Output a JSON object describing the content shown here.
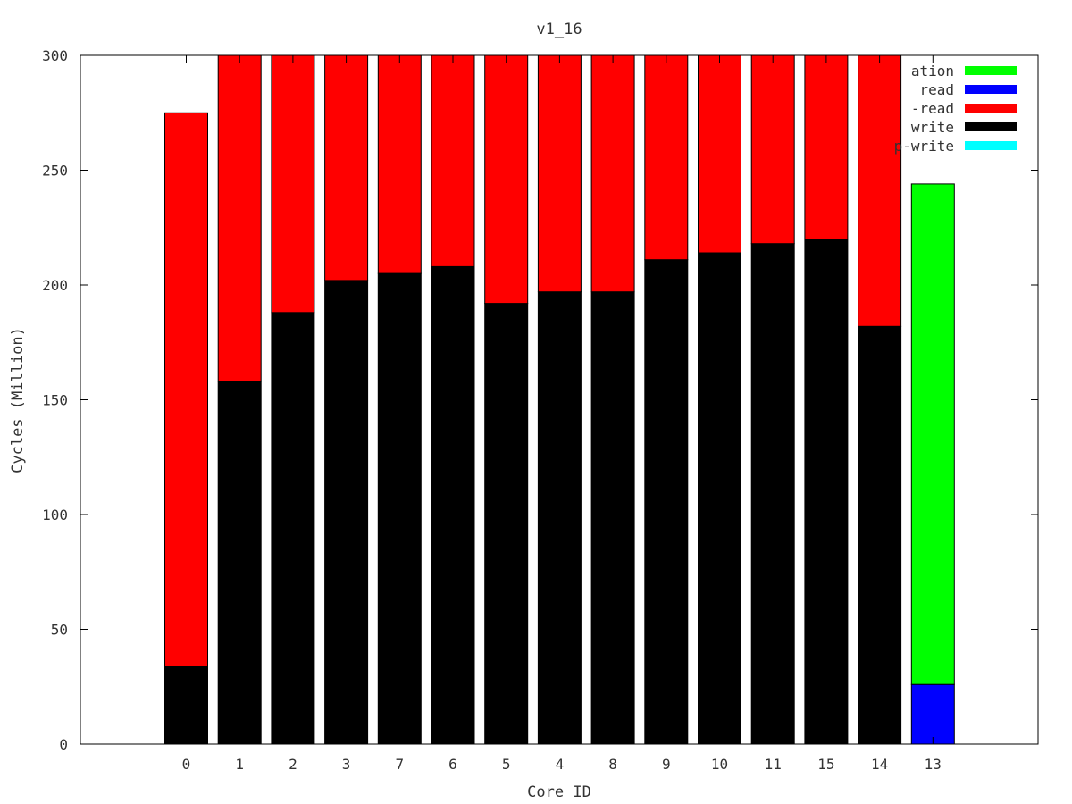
{
  "chart_data": {
    "type": "bar",
    "stacked": true,
    "title": "v1_16",
    "xlabel": "Core ID",
    "ylabel": "Cycles (Million)",
    "ylim": [
      0,
      300
    ],
    "yticks": [
      0,
      50,
      100,
      150,
      200,
      250,
      300
    ],
    "grid": false,
    "legend_placement": "top-right",
    "categories": [
      "0",
      "1",
      "2",
      "3",
      "7",
      "6",
      "5",
      "4",
      "8",
      "9",
      "10",
      "11",
      "15",
      "14",
      "13"
    ],
    "series": [
      {
        "name": "ation",
        "color": "#00ff00",
        "values": [
          0,
          0,
          0,
          0,
          0,
          0,
          0,
          0,
          0,
          0,
          0,
          0,
          0,
          0,
          218
        ]
      },
      {
        "name": "read",
        "color": "#0000ff",
        "values": [
          0,
          0,
          0,
          0,
          0,
          0,
          0,
          0,
          0,
          0,
          0,
          0,
          0,
          0,
          26
        ]
      },
      {
        "name": "-read",
        "color": "#ff0000",
        "values": [
          241,
          142,
          112,
          98,
          95,
          92,
          108,
          103,
          103,
          89,
          86,
          82,
          80,
          118,
          0
        ]
      },
      {
        "name": "write",
        "color": "#000000",
        "values": [
          34,
          158,
          188,
          202,
          205,
          208,
          192,
          197,
          197,
          211,
          214,
          218,
          220,
          182,
          0
        ]
      },
      {
        "name": "p-write",
        "color": "#00ffff",
        "values": [
          0,
          0,
          0,
          0,
          0,
          0,
          0,
          0,
          0,
          0,
          0,
          0,
          0,
          0,
          0
        ]
      }
    ]
  }
}
